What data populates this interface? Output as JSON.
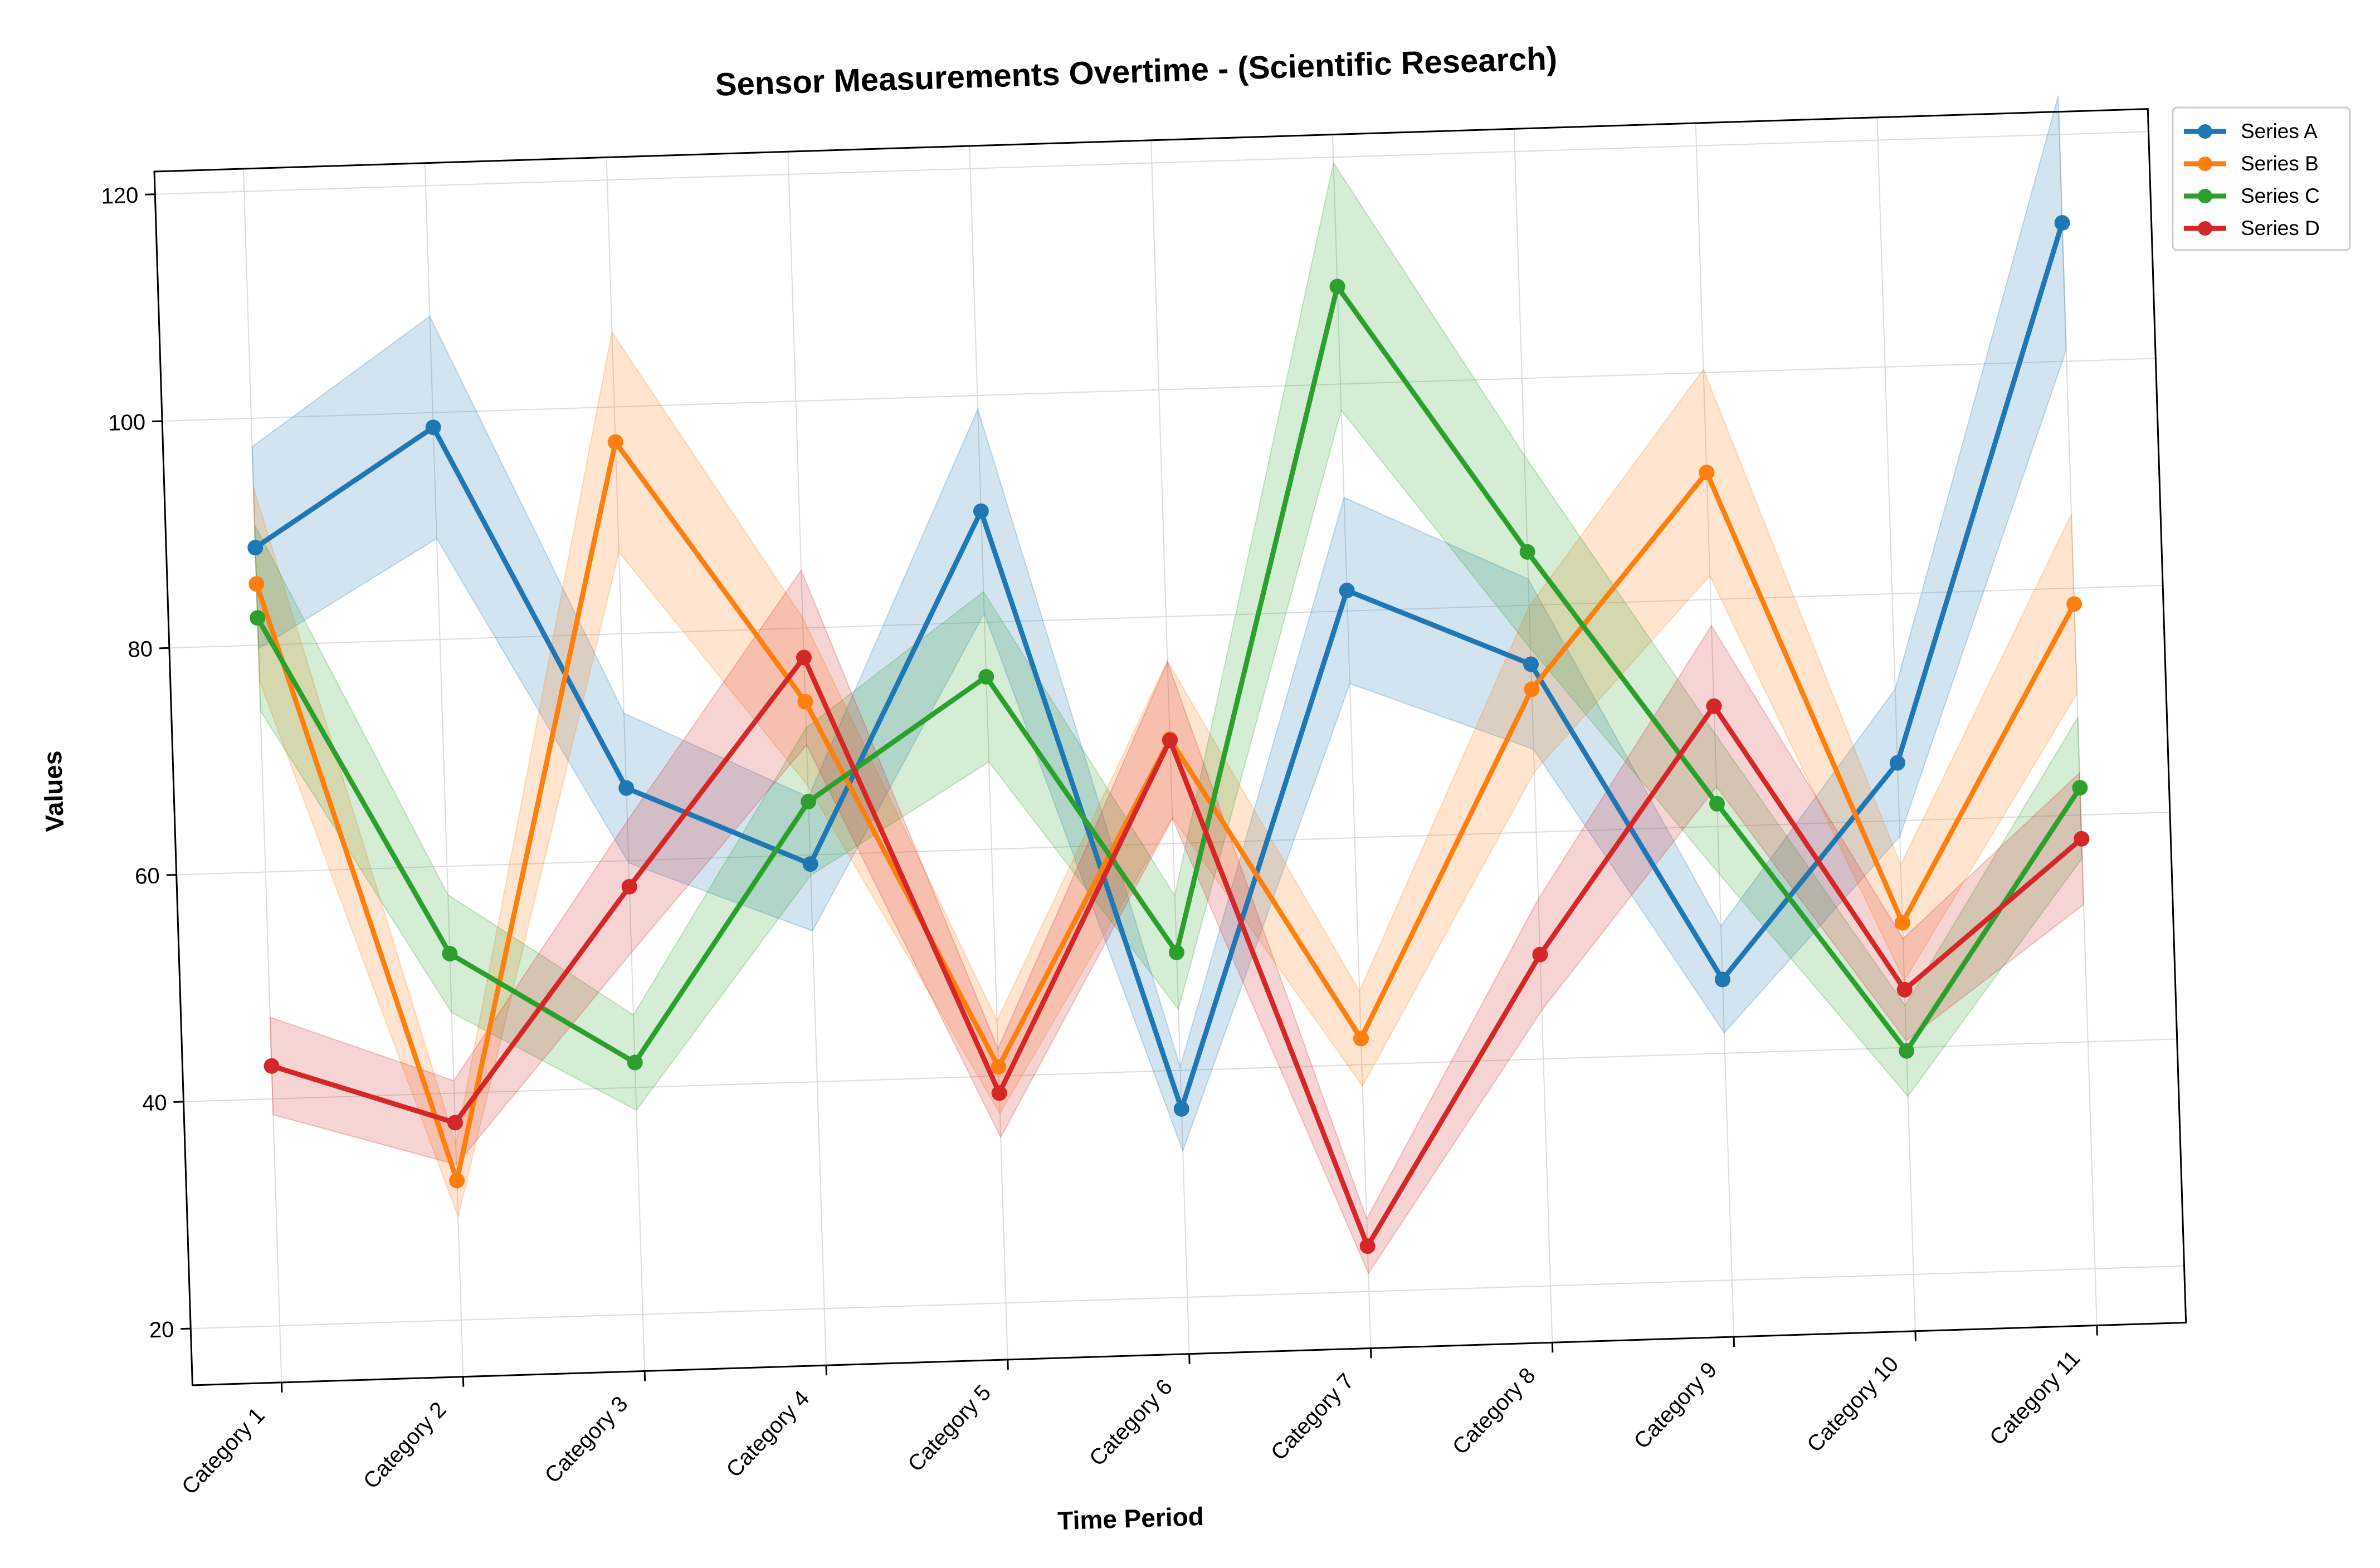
{
  "chart_data": {
    "type": "line",
    "title": "Sensor Measurements Overtime - (Scientific Research)",
    "xlabel": "Time Period",
    "ylabel": "Values",
    "categories": [
      "Category 1",
      "Category 2",
      "Category 3",
      "Category 4",
      "Category 5",
      "Category 6",
      "Category 7",
      "Category 8",
      "Category 9",
      "Category 10",
      "Category 11"
    ],
    "ylim": [
      15,
      122
    ],
    "yticks": [
      "20",
      "40",
      "60",
      "80",
      "100",
      "120"
    ],
    "grid": true,
    "legend_position": "upper right, outside plot",
    "band_description": "shaded uncertainty band around each series",
    "series": [
      {
        "name": "Series A",
        "color": "#1f77b4",
        "values": [
          88.6,
          98.7,
          66.4,
          59.2,
          89.8,
          36.6,
          81.8,
          74.8,
          46.5,
          65.1,
          112.2
        ],
        "band": [
          8.9,
          9.8,
          6.6,
          5.9,
          9.0,
          3.7,
          8.2,
          7.5,
          4.7,
          6.5,
          11.2
        ]
      },
      {
        "name": "Series B",
        "color": "#ff7f0e",
        "values": [
          85.4,
          32.3,
          96.9,
          73.5,
          40.8,
          69.2,
          42.3,
          72.6,
          91.2,
          51.0,
          78.6
        ],
        "band": [
          8.5,
          3.2,
          9.7,
          7.4,
          4.1,
          6.9,
          4.2,
          7.3,
          9.1,
          5.1,
          7.9
        ]
      },
      {
        "name": "Series C",
        "color": "#2ca02c",
        "values": [
          82.4,
          52.3,
          42.2,
          64.7,
          75.2,
          50.4,
          108.6,
          84.7,
          62.0,
          39.7,
          62.4
        ],
        "band": [
          8.2,
          5.2,
          4.2,
          6.5,
          7.5,
          5.0,
          10.9,
          8.5,
          6.2,
          4.0,
          6.2
        ]
      },
      {
        "name": "Series D",
        "color": "#d62728",
        "values": [
          42.9,
          37.4,
          57.7,
          77.4,
          38.5,
          69.1,
          24.0,
          49.2,
          70.6,
          45.1,
          57.9
        ],
        "band": [
          4.3,
          3.7,
          5.8,
          7.7,
          3.9,
          6.9,
          2.4,
          4.9,
          7.1,
          4.5,
          5.8
        ]
      }
    ]
  }
}
